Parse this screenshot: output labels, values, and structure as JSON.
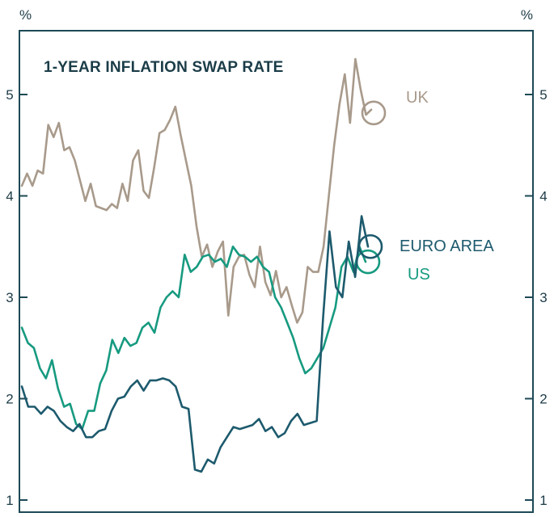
{
  "chart_data": {
    "type": "line",
    "title": "1-YEAR INFLATION SWAP RATE",
    "y_unit_left": "%",
    "y_unit_right": "%",
    "ylim": [
      1,
      5.6
    ],
    "yticks": [
      "1",
      "2",
      "3",
      "4",
      "5"
    ],
    "grid": false,
    "legend": "direct labels at line ends",
    "series": [
      {
        "name": "UK",
        "color": "#a89a8b",
        "values": [
          4.1,
          4.22,
          4.1,
          4.25,
          4.22,
          4.7,
          4.58,
          4.72,
          4.45,
          4.48,
          4.35,
          4.15,
          3.95,
          4.12,
          3.9,
          3.88,
          3.86,
          3.92,
          3.88,
          4.12,
          3.95,
          4.35,
          4.45,
          4.05,
          3.98,
          4.28,
          4.62,
          4.65,
          4.75,
          4.88,
          4.6,
          4.35,
          4.1,
          3.7,
          3.4,
          3.52,
          3.3,
          3.45,
          3.55,
          2.82,
          3.3,
          3.4,
          3.42,
          3.22,
          3.1,
          3.5,
          3.15,
          3.02,
          3.26,
          3.0,
          3.1,
          2.92,
          2.75,
          2.85,
          3.3,
          3.25,
          3.25,
          3.5,
          4.0,
          4.5,
          4.9,
          5.2,
          4.72,
          5.35,
          5.05,
          4.8,
          4.85
        ],
        "end_label": "UK"
      },
      {
        "name": "EURO AREA",
        "color": "#1d5a6d",
        "values": [
          2.12,
          1.92,
          1.92,
          1.85,
          1.92,
          1.88,
          1.78,
          1.72,
          1.68,
          1.75,
          1.62,
          1.62,
          1.68,
          1.7,
          1.88,
          2.0,
          2.02,
          2.12,
          2.18,
          2.08,
          2.18,
          2.18,
          2.2,
          2.18,
          2.12,
          1.92,
          1.9,
          1.3,
          1.28,
          1.4,
          1.36,
          1.52,
          1.62,
          1.72,
          1.7,
          1.72,
          1.74,
          1.8,
          1.68,
          1.72,
          1.62,
          1.66,
          1.78,
          1.85,
          1.74,
          1.76,
          1.78,
          2.8,
          3.65,
          3.1,
          3.0,
          3.55,
          3.2,
          3.8,
          3.5
        ],
        "end_label": "EURO AREA"
      },
      {
        "name": "US",
        "color": "#179a80",
        "values": [
          2.7,
          2.55,
          2.5,
          2.3,
          2.2,
          2.38,
          2.1,
          1.92,
          1.95,
          1.75,
          1.7,
          1.88,
          1.88,
          2.15,
          2.28,
          2.58,
          2.45,
          2.6,
          2.52,
          2.55,
          2.7,
          2.75,
          2.65,
          2.9,
          3.0,
          3.06,
          3.0,
          3.42,
          3.25,
          3.3,
          3.4,
          3.42,
          3.35,
          3.38,
          3.3,
          3.5,
          3.42,
          3.4,
          3.35,
          3.4,
          3.3,
          3.25,
          3.0,
          2.9,
          2.75,
          2.6,
          2.4,
          2.25,
          2.3,
          2.4,
          2.5,
          2.7,
          2.9,
          3.3,
          3.4,
          3.25,
          3.5,
          3.35
        ],
        "end_label": "US"
      }
    ]
  }
}
